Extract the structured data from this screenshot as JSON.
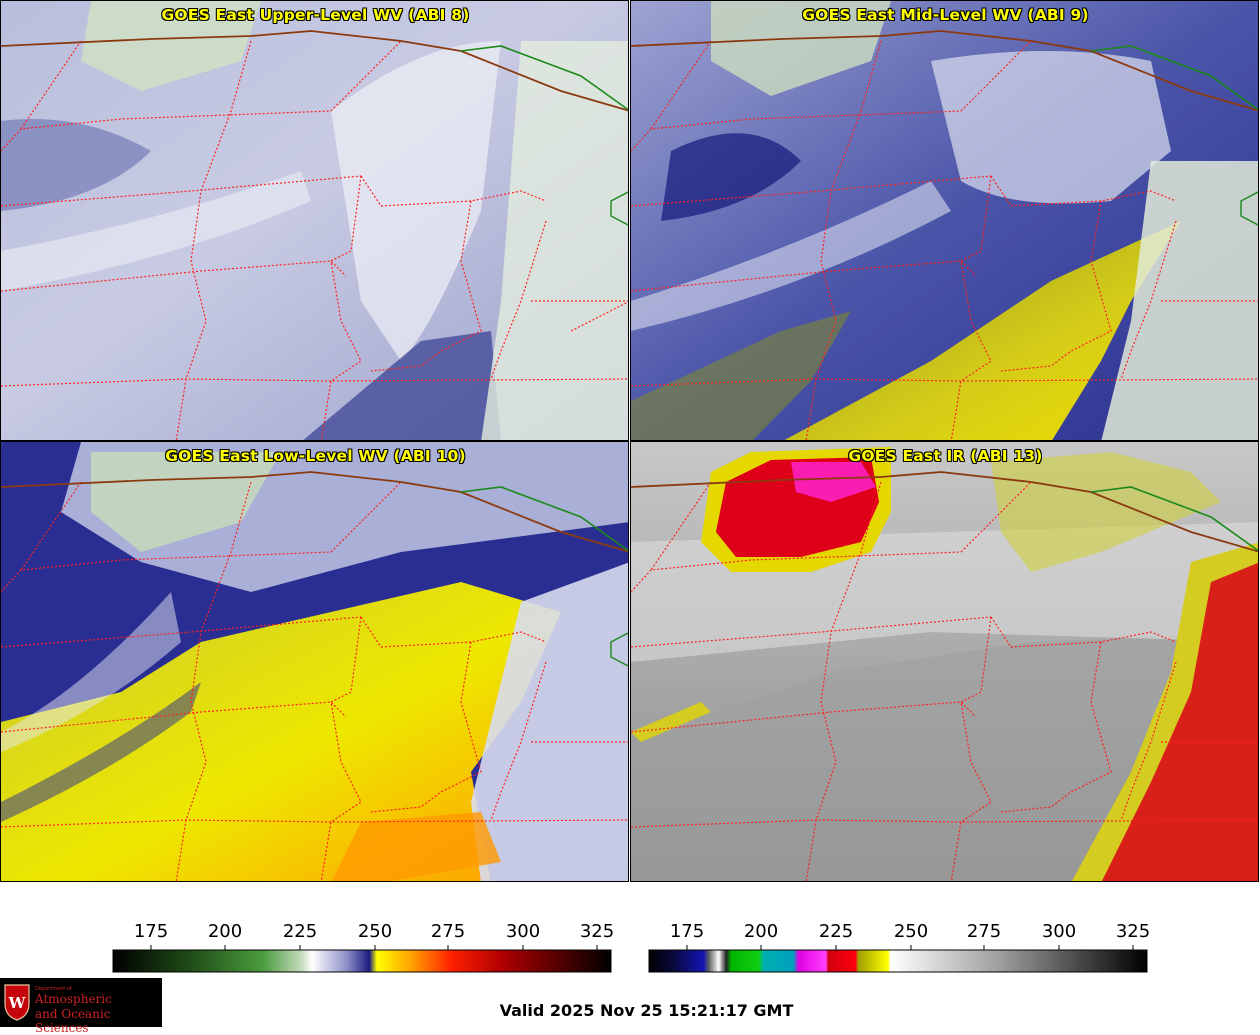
{
  "panels": [
    {
      "id": "upper",
      "title": "GOES East Upper-Level WV (ABI 8)"
    },
    {
      "id": "mid",
      "title": "GOES East Mid-Level WV (ABI 9)"
    },
    {
      "id": "low",
      "title": "GOES East Low-Level WV (ABI 10)"
    },
    {
      "id": "ir",
      "title": "GOES East IR (ABI 13)"
    }
  ],
  "colorbars": {
    "wv": {
      "ticks": [
        "175",
        "200",
        "225",
        "250",
        "275",
        "300",
        "325"
      ]
    },
    "ir": {
      "ticks": [
        "175",
        "200",
        "225",
        "250",
        "275",
        "300",
        "325"
      ]
    }
  },
  "logo": {
    "line1": "Department of",
    "line2": "Atmospheric",
    "line3": "and Oceanic Sciences",
    "seal_letter": "W"
  },
  "valid_time": "Valid 2025 Nov 25 15:21:17 GMT",
  "colors": {
    "state_border": "#ff2020",
    "country_border": "#8b3a10",
    "lake_border": "#1a8a1a",
    "title": "#ffff00"
  }
}
